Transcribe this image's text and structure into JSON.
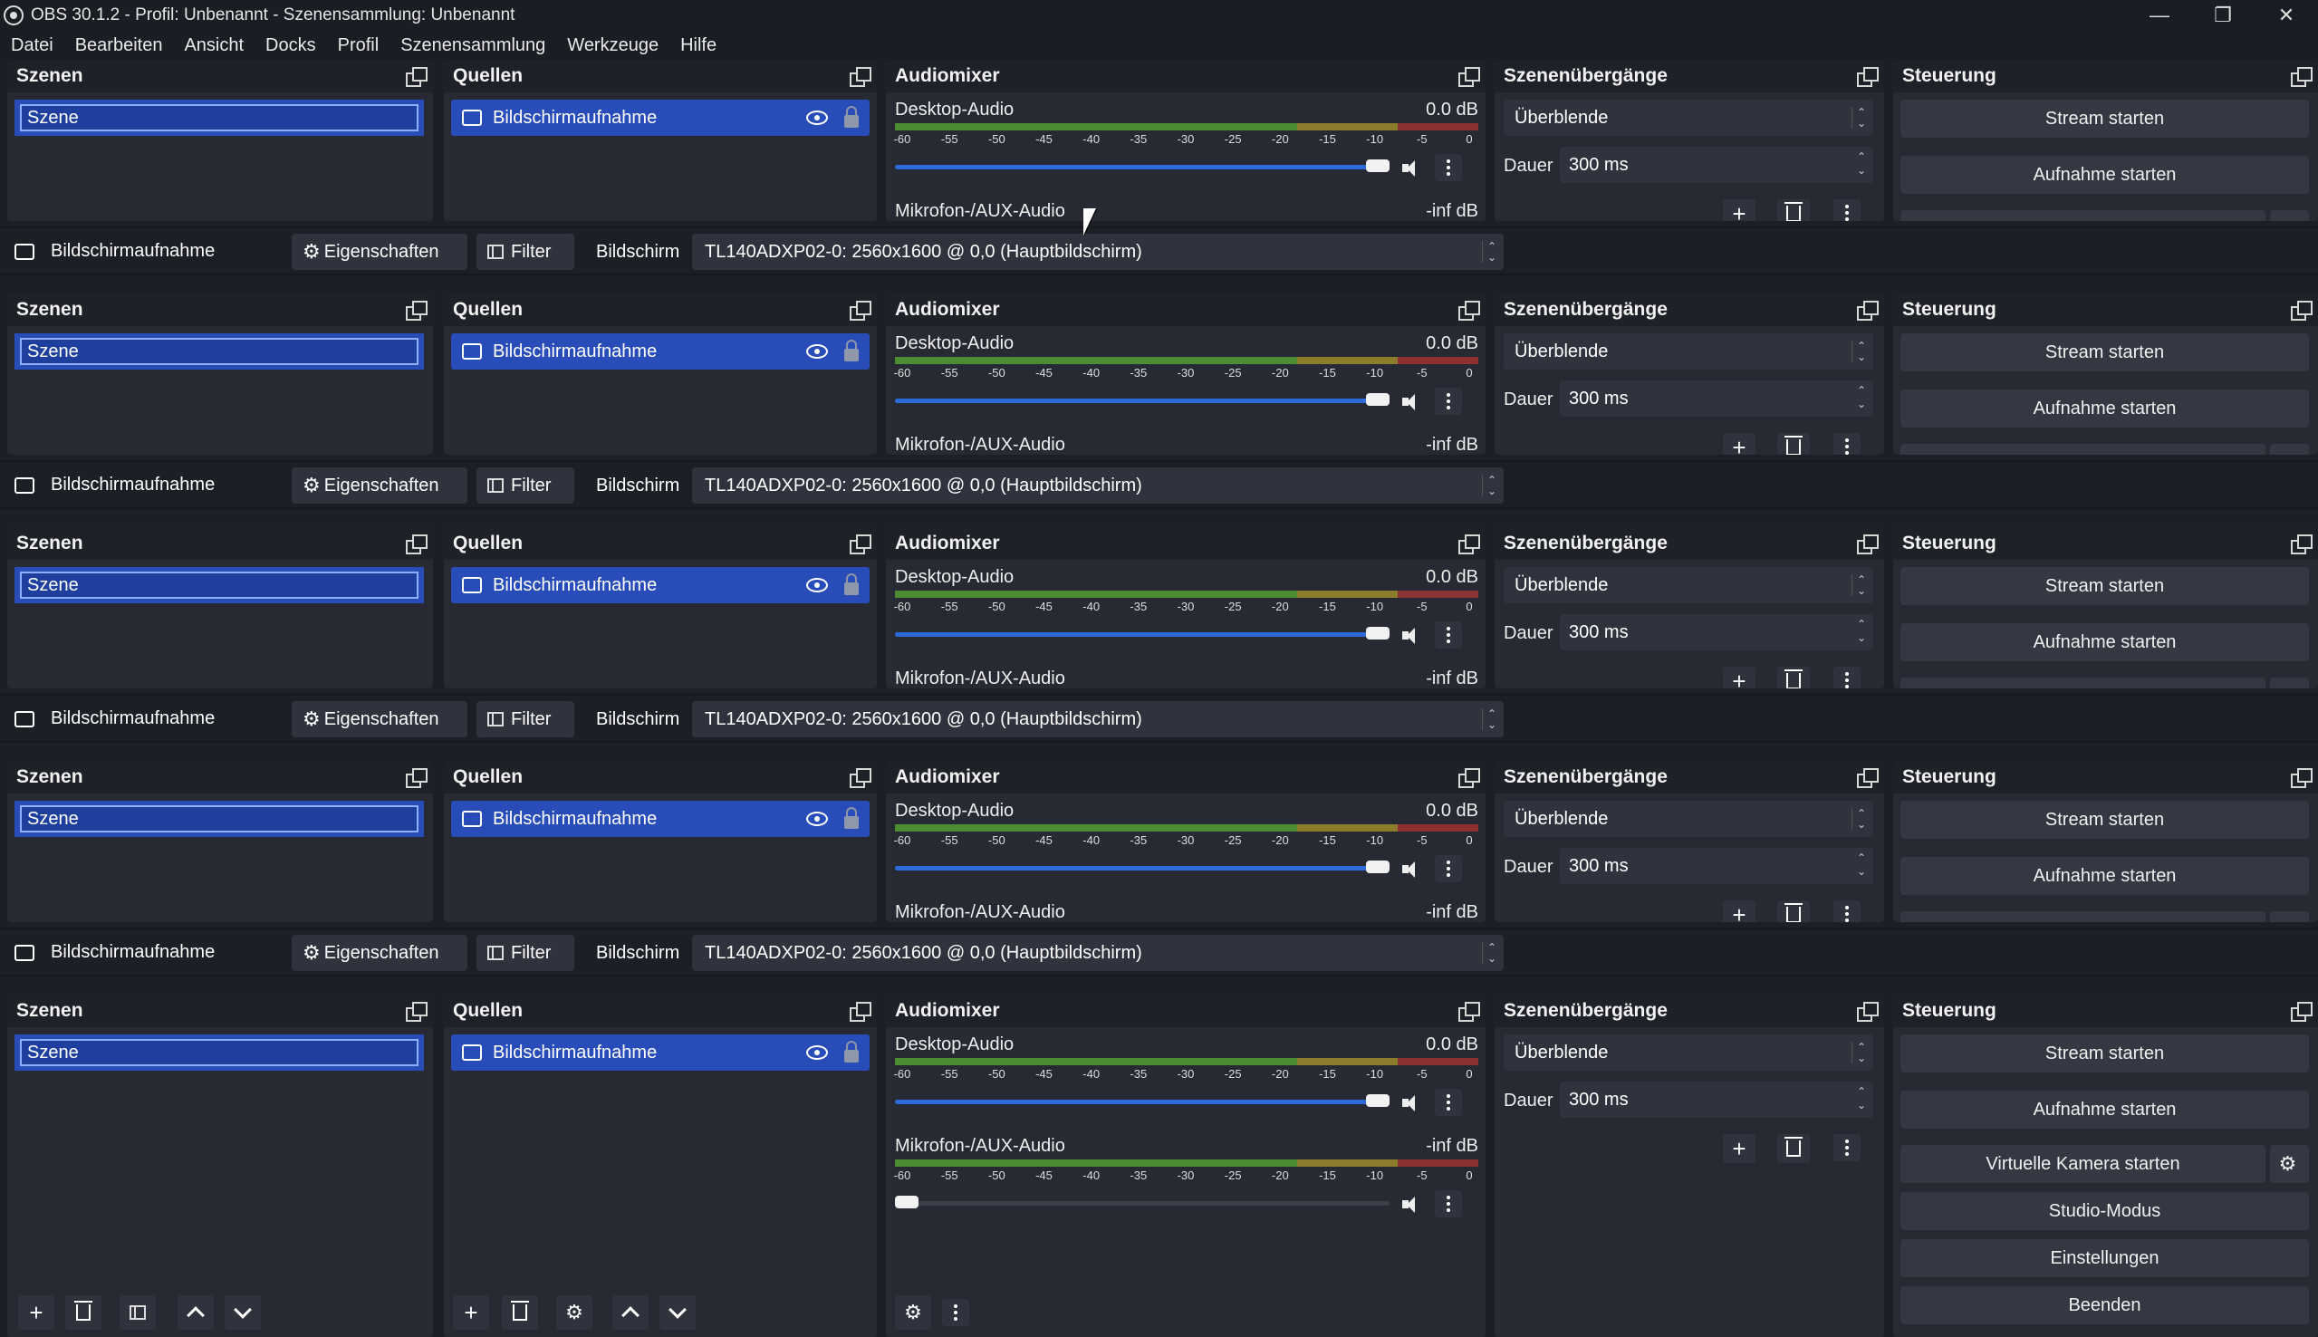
{
  "window": {
    "title": "OBS 30.1.2 - Profil: Unbenannt - Szenensammlung: Unbenannt",
    "minimize": "—",
    "restore": "❐",
    "close": "✕"
  },
  "menu": [
    "Datei",
    "Bearbeiten",
    "Ansicht",
    "Docks",
    "Profil",
    "Szenensammlung",
    "Werkzeuge",
    "Hilfe"
  ],
  "docks": {
    "scenes_title": "Szenen",
    "sources_title": "Quellen",
    "mixer_title": "Audiomixer",
    "transitions_title": "Szenenübergänge",
    "controls_title": "Steuerung"
  },
  "scenes": [
    "Szene"
  ],
  "sources": [
    {
      "name": "Bildschirmaufnahme",
      "visible": true,
      "locked": false
    }
  ],
  "mixer": {
    "channels": [
      {
        "name": "Desktop-Audio",
        "level": "0.0 dB",
        "volume_fraction": 1.0
      },
      {
        "name": "Mikrofon-/AUX-Audio",
        "level": "-inf dB",
        "volume_fraction": 0.0
      }
    ],
    "scale": [
      "-60",
      "-55",
      "-50",
      "-45",
      "-40",
      "-35",
      "-30",
      "-25",
      "-20",
      "-15",
      "-10",
      "-5",
      "0"
    ]
  },
  "transitions": {
    "selected": "Überblende",
    "duration_label": "Dauer",
    "duration_value": "300 ms"
  },
  "controls": {
    "stream": "Stream starten",
    "record": "Aufnahme starten",
    "virtual_cam": "Virtuelle Kamera starten",
    "studio": "Studio-Modus",
    "settings": "Einstellungen",
    "exit": "Beenden"
  },
  "source_toolbar": {
    "source_name": "Bildschirmaufnahme",
    "properties": "Eigenschaften",
    "filter": "Filter",
    "screen_label": "Bildschirm",
    "screen_value": "TL140ADXP02-0: 2560x1600 @ 0,0 (Hauptbildschirm)"
  },
  "colors": {
    "accent": "#284cb8",
    "background": "#1d1f26",
    "panel": "#272a33",
    "button": "#343843",
    "meter_green": "#4c8c32",
    "meter_yellow": "#8c7d2d",
    "meter_red": "#8c3232"
  },
  "icons": [
    "obs-logo-icon",
    "float-dock-icon",
    "monitor-icon",
    "eye-icon",
    "lock-icon",
    "speaker-icon",
    "kebab-menu-icon",
    "plus-icon",
    "trash-icon",
    "filter-icon",
    "gear-icon",
    "chevron-up-icon",
    "chevron-down-icon",
    "mouse-cursor-icon"
  ]
}
